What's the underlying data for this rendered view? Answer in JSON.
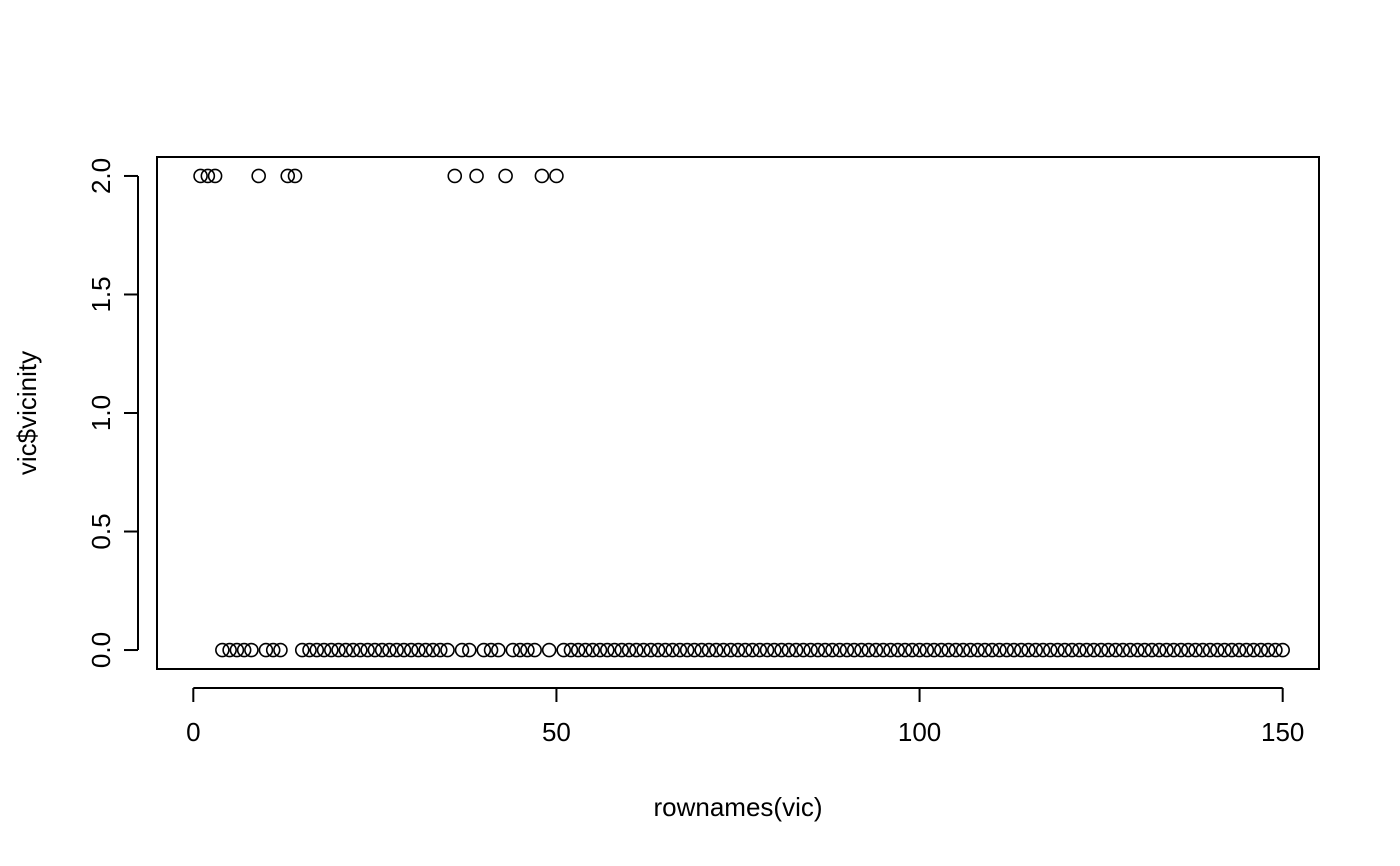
{
  "chart_data": {
    "type": "scatter",
    "title": "",
    "xlabel": "rownames(vic)",
    "ylabel": "vic$vicinity",
    "xlim": [
      -5,
      155
    ],
    "ylim": [
      -0.08,
      2.08
    ],
    "xticks": [
      0,
      50,
      100,
      150
    ],
    "xtick_labels": [
      "0",
      "50",
      "100",
      "150"
    ],
    "yticks": [
      0,
      0.5,
      1,
      1.5,
      2
    ],
    "ytick_labels": [
      "0.0",
      "0.5",
      "1.0",
      "1.5",
      "2.0"
    ],
    "grid": false,
    "legend": "none",
    "marker": "open-circle",
    "x": [
      1,
      2,
      3,
      4,
      5,
      6,
      7,
      8,
      9,
      10,
      11,
      12,
      13,
      14,
      15,
      16,
      17,
      18,
      19,
      20,
      21,
      22,
      23,
      24,
      25,
      26,
      27,
      28,
      29,
      30,
      31,
      32,
      33,
      34,
      35,
      36,
      37,
      38,
      39,
      40,
      41,
      42,
      43,
      44,
      45,
      46,
      47,
      48,
      49,
      50,
      51,
      52,
      53,
      54,
      55,
      56,
      57,
      58,
      59,
      60,
      61,
      62,
      63,
      64,
      65,
      66,
      67,
      68,
      69,
      70,
      71,
      72,
      73,
      74,
      75,
      76,
      77,
      78,
      79,
      80,
      81,
      82,
      83,
      84,
      85,
      86,
      87,
      88,
      89,
      90,
      91,
      92,
      93,
      94,
      95,
      96,
      97,
      98,
      99,
      100,
      101,
      102,
      103,
      104,
      105,
      106,
      107,
      108,
      109,
      110,
      111,
      112,
      113,
      114,
      115,
      116,
      117,
      118,
      119,
      120,
      121,
      122,
      123,
      124,
      125,
      126,
      127,
      128,
      129,
      130,
      131,
      132,
      133,
      134,
      135,
      136,
      137,
      138,
      139,
      140,
      141,
      142,
      143,
      144,
      145,
      146,
      147,
      148,
      149,
      150
    ],
    "y": [
      2,
      2,
      2,
      0,
      0,
      0,
      0,
      0,
      2,
      0,
      0,
      0,
      2,
      2,
      0,
      0,
      0,
      0,
      0,
      0,
      0,
      0,
      0,
      0,
      0,
      0,
      0,
      0,
      0,
      0,
      0,
      0,
      0,
      0,
      0,
      2,
      0,
      0,
      2,
      0,
      0,
      0,
      2,
      0,
      0,
      0,
      0,
      2,
      0,
      2,
      0,
      0,
      0,
      0,
      0,
      0,
      0,
      0,
      0,
      0,
      0,
      0,
      0,
      0,
      0,
      0,
      0,
      0,
      0,
      0,
      0,
      0,
      0,
      0,
      0,
      0,
      0,
      0,
      0,
      0,
      0,
      0,
      0,
      0,
      0,
      0,
      0,
      0,
      0,
      0,
      0,
      0,
      0,
      0,
      0,
      0,
      0,
      0,
      0,
      0,
      0,
      0,
      0,
      0,
      0,
      0,
      0,
      0,
      0,
      0,
      0,
      0,
      0,
      0,
      0,
      0,
      0,
      0,
      0,
      0,
      0,
      0,
      0,
      0,
      0,
      0,
      0,
      0,
      0,
      0,
      0,
      0,
      0,
      0,
      0,
      0,
      0,
      0,
      0,
      0,
      0,
      0,
      0,
      0,
      0,
      0,
      0,
      0,
      0,
      0
    ]
  }
}
